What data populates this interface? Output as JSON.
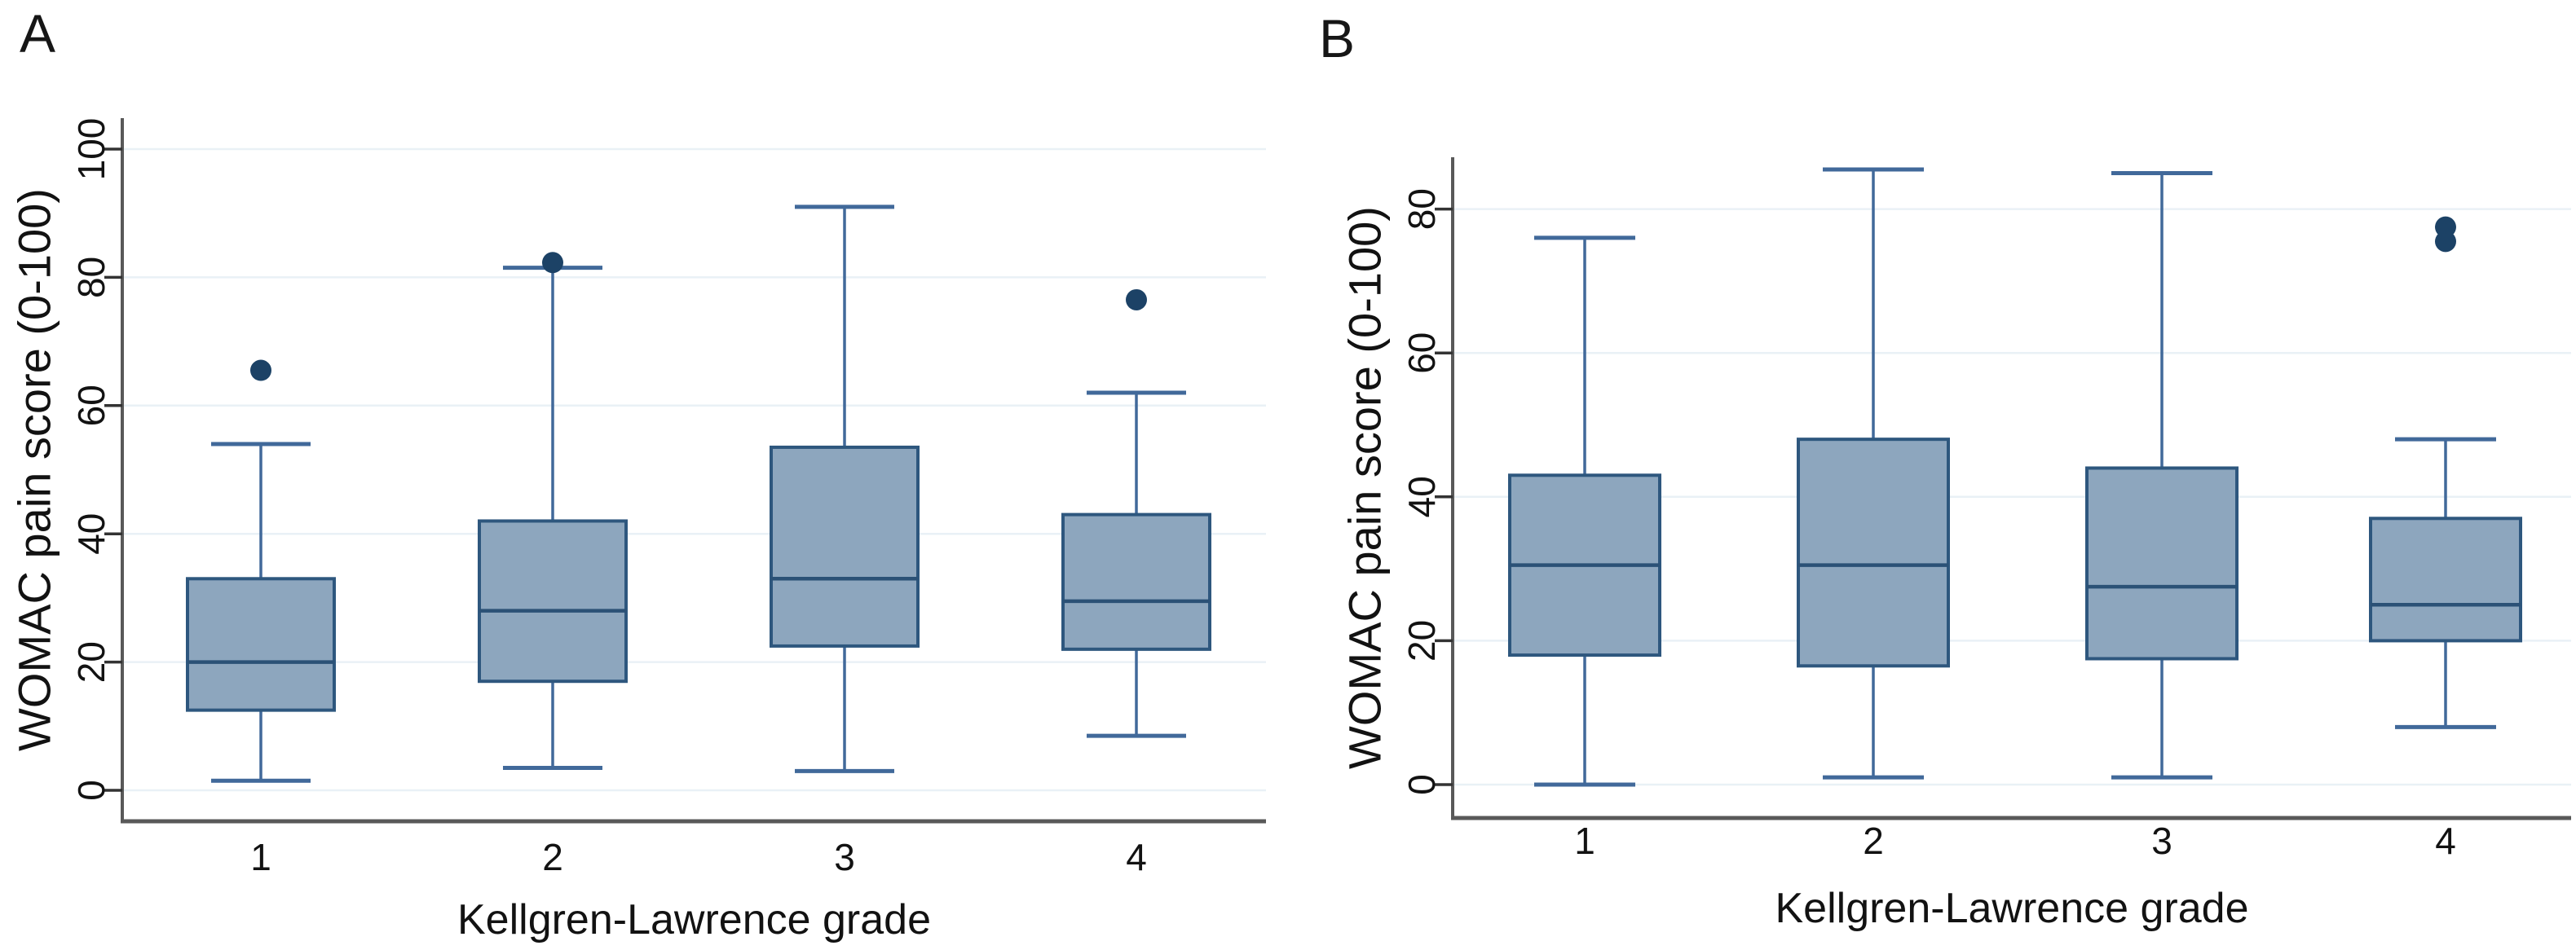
{
  "chart_data": [
    {
      "type": "box",
      "panel_letter": "A",
      "xlabel": "Kellgren-Lawrence grade",
      "ylabel": "WOMAC pain score (0-100)",
      "categories": [
        "1",
        "2",
        "3",
        "4"
      ],
      "yticks": [
        0,
        20,
        40,
        60,
        80,
        100
      ],
      "ylim": [
        -5,
        104
      ],
      "grid": true,
      "legend": "none",
      "series": [
        {
          "category": "1",
          "whisker_low": 1.5,
          "q1": 12.5,
          "median": 20,
          "q3": 33,
          "whisker_high": 54,
          "outliers": [
            65.5
          ]
        },
        {
          "category": "2",
          "whisker_low": 3.5,
          "q1": 17,
          "median": 28,
          "q3": 42,
          "whisker_high": 81.5,
          "outliers": [
            82.3
          ]
        },
        {
          "category": "3",
          "whisker_low": 3,
          "q1": 22.5,
          "median": 33,
          "q3": 53.5,
          "whisker_high": 91,
          "outliers": []
        },
        {
          "category": "4",
          "whisker_low": 8.5,
          "q1": 22,
          "median": 29.5,
          "q3": 43,
          "whisker_high": 62,
          "outliers": [
            76.5
          ]
        }
      ]
    },
    {
      "type": "box",
      "panel_letter": "B",
      "xlabel": "Kellgren-Lawrence grade",
      "ylabel": "WOMAC pain score (0-100)",
      "categories": [
        "1",
        "2",
        "3",
        "4"
      ],
      "yticks": [
        0,
        20,
        40,
        60,
        80
      ],
      "ylim": [
        -4,
        88
      ],
      "grid": true,
      "legend": "none",
      "series": [
        {
          "category": "1",
          "whisker_low": 0,
          "q1": 18,
          "median": 30.5,
          "q3": 43,
          "whisker_high": 76,
          "outliers": []
        },
        {
          "category": "2",
          "whisker_low": 1,
          "q1": 16.5,
          "median": 30.5,
          "q3": 48,
          "whisker_high": 85.5,
          "outliers": []
        },
        {
          "category": "3",
          "whisker_low": 1,
          "q1": 17.5,
          "median": 27.5,
          "q3": 44,
          "whisker_high": 85,
          "outliers": []
        },
        {
          "category": "4",
          "whisker_low": 8,
          "q1": 20,
          "median": 25,
          "q3": 37,
          "whisker_high": 48,
          "outliers": [
            75.5,
            77.5
          ]
        }
      ]
    }
  ],
  "colors": {
    "box_fill": "#8da6be",
    "box_border": "#2e577e",
    "median": "#2b5176",
    "whisker": "#41699a",
    "outlier": "#1c4266",
    "gridline": "#e9f1f6",
    "axis": "#595959",
    "tick": "#333333",
    "text": "#121212"
  }
}
